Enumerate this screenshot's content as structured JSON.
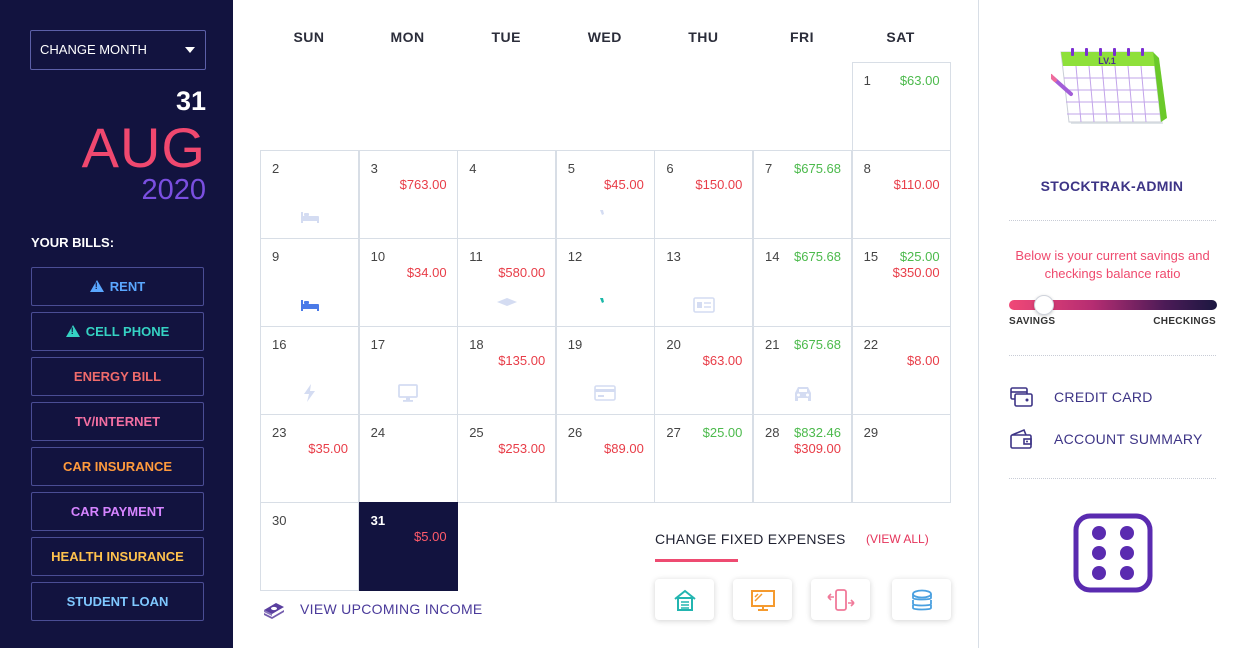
{
  "sidebar": {
    "change_month_label": "CHANGE MONTH",
    "date": {
      "day": "31",
      "month": "AUG",
      "year": "2020"
    },
    "bills_title": "YOUR BILLS:",
    "bills": [
      {
        "label": "RENT",
        "color": "#5aa7ff",
        "warning": true
      },
      {
        "label": "CELL PHONE",
        "color": "#35d2c3",
        "warning": true
      },
      {
        "label": "ENERGY BILL",
        "color": "#f06b6b",
        "warning": false
      },
      {
        "label": "TV/INTERNET",
        "color": "#f36fa2",
        "warning": false
      },
      {
        "label": "CAR INSURANCE",
        "color": "#ff9a3c",
        "warning": false
      },
      {
        "label": "CAR PAYMENT",
        "color": "#d584ff",
        "warning": false
      },
      {
        "label": "HEALTH INSURANCE",
        "color": "#ffc24d",
        "warning": false
      },
      {
        "label": "STUDENT LOAN",
        "color": "#7fc8ff",
        "warning": false
      }
    ]
  },
  "calendar": {
    "weekdays": [
      "SUN",
      "MON",
      "TUE",
      "WED",
      "THU",
      "FRI",
      "SAT"
    ],
    "days": [
      {
        "day": "1",
        "amounts": [
          {
            "v": "$63.00",
            "c": "green"
          }
        ]
      },
      {
        "day": "2",
        "amounts": [],
        "icon": "bed-icon"
      },
      {
        "day": "3",
        "amounts": [
          {
            "v": "$763.00",
            "c": "red"
          }
        ]
      },
      {
        "day": "4",
        "amounts": []
      },
      {
        "day": "5",
        "amounts": [
          {
            "v": "$45.00",
            "c": "red"
          }
        ],
        "icon": "phone-icon"
      },
      {
        "day": "6",
        "amounts": [
          {
            "v": "$150.00",
            "c": "red"
          }
        ]
      },
      {
        "day": "7",
        "amounts": [
          {
            "v": "$675.68",
            "c": "green"
          }
        ]
      },
      {
        "day": "8",
        "amounts": [
          {
            "v": "$110.00",
            "c": "red"
          }
        ],
        "icon": "heartbeat-icon"
      },
      {
        "day": "9",
        "amounts": [],
        "icon": "bed-icon-active"
      },
      {
        "day": "10",
        "amounts": [
          {
            "v": "$34.00",
            "c": "red"
          }
        ]
      },
      {
        "day": "11",
        "amounts": [
          {
            "v": "$580.00",
            "c": "red"
          }
        ],
        "icon": "graduation-cap-icon"
      },
      {
        "day": "12",
        "amounts": [],
        "icon": "phone-icon-active"
      },
      {
        "day": "13",
        "amounts": [],
        "icon": "id-card-icon"
      },
      {
        "day": "14",
        "amounts": [
          {
            "v": "$675.68",
            "c": "green"
          }
        ]
      },
      {
        "day": "15",
        "amounts": [
          {
            "v": "$25.00",
            "c": "green"
          },
          {
            "v": "$350.00",
            "c": "red"
          }
        ]
      },
      {
        "day": "16",
        "amounts": [],
        "icon": "bolt-icon"
      },
      {
        "day": "17",
        "amounts": [],
        "icon": "monitor-icon"
      },
      {
        "day": "18",
        "amounts": [
          {
            "v": "$135.00",
            "c": "red"
          }
        ]
      },
      {
        "day": "19",
        "amounts": [],
        "icon": "credit-card-icon"
      },
      {
        "day": "20",
        "amounts": [
          {
            "v": "$63.00",
            "c": "red"
          }
        ]
      },
      {
        "day": "21",
        "amounts": [
          {
            "v": "$675.68",
            "c": "green"
          }
        ],
        "icon": "car-icon"
      },
      {
        "day": "22",
        "amounts": [
          {
            "v": "$8.00",
            "c": "red"
          }
        ]
      },
      {
        "day": "23",
        "amounts": [
          {
            "v": "$35.00",
            "c": "red"
          }
        ]
      },
      {
        "day": "24",
        "amounts": []
      },
      {
        "day": "25",
        "amounts": [
          {
            "v": "$253.00",
            "c": "red"
          }
        ]
      },
      {
        "day": "26",
        "amounts": [
          {
            "v": "$89.00",
            "c": "red"
          }
        ]
      },
      {
        "day": "27",
        "amounts": [
          {
            "v": "$25.00",
            "c": "green"
          }
        ]
      },
      {
        "day": "28",
        "amounts": [
          {
            "v": "$832.46",
            "c": "green"
          },
          {
            "v": "$309.00",
            "c": "red"
          }
        ]
      },
      {
        "day": "29",
        "amounts": []
      },
      {
        "day": "30",
        "amounts": []
      },
      {
        "day": "31",
        "amounts": [
          {
            "v": "$5.00",
            "c": "red"
          }
        ],
        "today": true
      }
    ]
  },
  "upcoming_income_label": "VIEW UPCOMING INCOME",
  "fixed_expenses": {
    "title": "CHANGE FIXED EXPENSES",
    "view_all": "(VIEW ALL)",
    "buttons": [
      "house-icon",
      "tv-icon",
      "transfer-icon",
      "coins-icon"
    ]
  },
  "right_panel": {
    "calendar_graphic_label": "LV.1",
    "username": "STOCKTRAK-ADMIN",
    "ratio_text": "Below is your current savings and checkings balance ratio",
    "savings_label": "SAVINGS",
    "checkings_label": "CHECKINGS",
    "savings_ratio": 0.17,
    "links": [
      {
        "label": "CREDIT CARD",
        "icon": "credit-card-icon"
      },
      {
        "label": "ACCOUNT SUMMARY",
        "icon": "wallet-icon"
      }
    ],
    "dice_icon": "dice-six-icon"
  }
}
